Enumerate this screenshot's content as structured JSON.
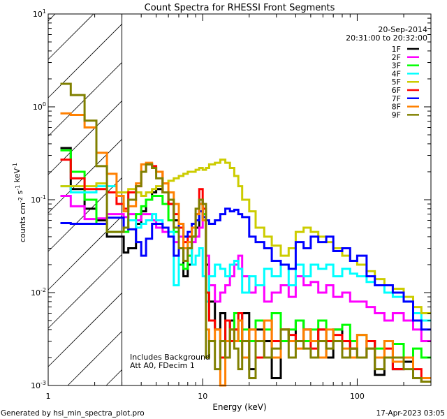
{
  "chart_data": {
    "type": "line",
    "title": "Count Spectra for RHESSI Front Segments",
    "xlabel": "Energy (keV)",
    "ylabel": "counts cm-2 s-1 keV-1",
    "xscale": "log",
    "yscale": "log",
    "xlim": [
      1,
      300
    ],
    "ylim": [
      0.001,
      10
    ],
    "x_ticks": [
      {
        "value": 1,
        "label": "1"
      },
      {
        "value": 10,
        "label": "10"
      },
      {
        "value": 100,
        "label": "100"
      }
    ],
    "y_ticks": [
      {
        "value": 0.001,
        "base": "10",
        "exp": "-3"
      },
      {
        "value": 0.01,
        "base": "10",
        "exp": "-2"
      },
      {
        "value": 0.1,
        "base": "10",
        "exp": "-1"
      },
      {
        "value": 1,
        "base": "10",
        "exp": "0"
      },
      {
        "value": 10,
        "base": "10",
        "exp": "1"
      }
    ],
    "hatched_region_keV": [
      1,
      3
    ],
    "legend_placement": "top-right",
    "date": "20-Sep-2014",
    "time_range": "20:31:00 to 20:32:00",
    "annotations": [
      "Includes Background",
      "Att A0, FDecim 1"
    ],
    "energy_edges": [
      1.2,
      1.4,
      1.72,
      2.05,
      2.4,
      2.77,
      3.08,
      3.3,
      3.7,
      4.0,
      4.3,
      4.7,
      5.0,
      5.5,
      6.0,
      6.5,
      7.0,
      7.5,
      8.0,
      8.5,
      9.0,
      9.5,
      10,
      10.5,
      11,
      12,
      13,
      14,
      15,
      16,
      17,
      18,
      20,
      22,
      25,
      28,
      32,
      36,
      40,
      45,
      50,
      56,
      63,
      70,
      80,
      90,
      100,
      115,
      130,
      150,
      170,
      200,
      230,
      260,
      300
    ],
    "series": [
      {
        "name": "1F",
        "color": "#000000",
        "values": [
          0.36,
          0.13,
          0.08,
          0.06,
          0.04,
          0.04,
          0.027,
          0.03,
          0.055,
          0.075,
          0.1,
          0.12,
          0.13,
          0.12,
          0.09,
          0.06,
          0.03,
          0.015,
          0.02,
          0.04,
          0.05,
          0.1,
          0.06,
          0.02,
          0.008,
          0.004,
          0.006,
          0.003,
          0.005,
          0.004,
          0.003,
          0.006,
          0.0015,
          0.004,
          0.003,
          0.0012,
          0.004,
          0.003,
          0.005,
          0.004,
          0.003,
          0.004,
          0.002,
          0.004,
          0.003,
          0.0025,
          0.002,
          0.003,
          0.0013,
          0.002,
          0.0015,
          0.0018,
          0.0012,
          0.0011
        ]
      },
      {
        "name": "2F",
        "color": "#ff00ff",
        "values": [
          0.11,
          0.085,
          0.062,
          0.063,
          0.07,
          0.07,
          0.065,
          0.07,
          0.06,
          0.07,
          0.07,
          0.06,
          0.05,
          0.045,
          0.04,
          0.035,
          0.04,
          0.03,
          0.025,
          0.035,
          0.04,
          0.05,
          0.06,
          0.025,
          0.012,
          0.008,
          0.01,
          0.012,
          0.015,
          0.02,
          0.025,
          0.015,
          0.01,
          0.012,
          0.008,
          0.01,
          0.012,
          0.009,
          0.015,
          0.012,
          0.013,
          0.01,
          0.012,
          0.009,
          0.01,
          0.008,
          0.008,
          0.007,
          0.006,
          0.005,
          0.006,
          0.005,
          0.004,
          0.003
        ]
      },
      {
        "name": "3F",
        "color": "#00ff00",
        "values": [
          0.34,
          0.2,
          0.1,
          0.055,
          0.045,
          0.045,
          0.045,
          0.06,
          0.07,
          0.085,
          0.1,
          0.11,
          0.11,
          0.09,
          0.06,
          0.045,
          0.02,
          0.018,
          0.025,
          0.04,
          0.06,
          0.09,
          0.07,
          0.01,
          0.005,
          0.004,
          0.003,
          0.005,
          0.004,
          0.006,
          0.003,
          0.004,
          0.003,
          0.005,
          0.004,
          0.006,
          0.003,
          0.004,
          0.005,
          0.003,
          0.004,
          0.005,
          0.003,
          0.004,
          0.0045,
          0.003,
          0.0035,
          0.003,
          0.0025,
          0.003,
          0.0028,
          0.002,
          0.0025,
          0.002
        ]
      },
      {
        "name": "4F",
        "color": "#00ffff",
        "values": [
          0.14,
          0.12,
          0.12,
          0.14,
          0.14,
          0.12,
          0.12,
          0.06,
          0.05,
          0.055,
          0.06,
          0.07,
          0.06,
          0.05,
          0.045,
          0.012,
          0.05,
          0.04,
          0.03,
          0.02,
          0.025,
          0.03,
          0.015,
          0.008,
          0.015,
          0.02,
          0.018,
          0.015,
          0.02,
          0.022,
          0.018,
          0.01,
          0.015,
          0.012,
          0.018,
          0.015,
          0.02,
          0.012,
          0.02,
          0.015,
          0.02,
          0.018,
          0.02,
          0.015,
          0.018,
          0.016,
          0.015,
          0.013,
          0.012,
          0.01,
          0.009,
          0.008,
          0.006,
          0.005
        ]
      },
      {
        "name": "5F",
        "color": "#cccc00",
        "values": [
          0.14,
          0.14,
          0.14,
          0.15,
          0.12,
          0.12,
          0.12,
          0.13,
          0.12,
          0.11,
          0.12,
          0.13,
          0.14,
          0.15,
          0.16,
          0.17,
          0.18,
          0.19,
          0.2,
          0.2,
          0.21,
          0.22,
          0.21,
          0.22,
          0.24,
          0.25,
          0.27,
          0.25,
          0.22,
          0.18,
          0.14,
          0.1,
          0.075,
          0.05,
          0.04,
          0.032,
          0.025,
          0.03,
          0.045,
          0.05,
          0.045,
          0.04,
          0.035,
          0.03,
          0.025,
          0.022,
          0.02,
          0.017,
          0.014,
          0.012,
          0.011,
          0.009,
          0.007,
          0.006
        ]
      },
      {
        "name": "6F",
        "color": "#ff0000",
        "values": [
          0.27,
          0.17,
          0.13,
          0.13,
          0.12,
          0.09,
          0.08,
          0.12,
          0.14,
          0.2,
          0.24,
          0.23,
          0.2,
          0.12,
          0.09,
          0.07,
          0.05,
          0.035,
          0.04,
          0.05,
          0.07,
          0.13,
          0.08,
          0.01,
          0.005,
          0.004,
          0.002,
          0.005,
          0.003,
          0.004,
          0.006,
          0.003,
          0.004,
          0.002,
          0.005,
          0.003,
          0.004,
          0.0035,
          0.003,
          0.004,
          0.0025,
          0.004,
          0.003,
          0.0035,
          0.003,
          0.0025,
          0.002,
          0.003,
          0.002,
          0.0025,
          0.0015,
          0.002,
          0.0015,
          0.0012
        ]
      },
      {
        "name": "7F",
        "color": "#0000ff",
        "values": [
          0.056,
          0.055,
          0.055,
          0.055,
          0.064,
          0.064,
          0.05,
          0.048,
          0.035,
          0.025,
          0.038,
          0.055,
          0.055,
          0.05,
          0.04,
          0.025,
          0.055,
          0.04,
          0.045,
          0.055,
          0.06,
          0.075,
          0.065,
          0.06,
          0.055,
          0.06,
          0.07,
          0.08,
          0.075,
          0.078,
          0.07,
          0.065,
          0.04,
          0.035,
          0.03,
          0.022,
          0.02,
          0.018,
          0.035,
          0.03,
          0.04,
          0.035,
          0.04,
          0.028,
          0.03,
          0.022,
          0.025,
          0.015,
          0.012,
          0.012,
          0.01,
          0.008,
          0.005,
          0.004
        ]
      },
      {
        "name": "8F",
        "color": "#ff8000",
        "values": [
          0.85,
          0.82,
          0.6,
          0.32,
          0.19,
          0.11,
          0.075,
          0.085,
          0.15,
          0.24,
          0.25,
          0.22,
          0.2,
          0.15,
          0.12,
          0.09,
          0.055,
          0.03,
          0.035,
          0.05,
          0.07,
          0.09,
          0.06,
          0.004,
          0.003,
          0.004,
          0.0008,
          0.003,
          0.004,
          0.003,
          0.005,
          0.002,
          0.004,
          0.003,
          0.005,
          0.002,
          0.004,
          0.003,
          0.0025,
          0.004,
          0.003,
          0.002,
          0.004,
          0.003,
          0.0025,
          0.002,
          0.0035,
          0.0025,
          0.002,
          0.003,
          0.0018,
          0.002,
          0.0012,
          0.0012
        ]
      },
      {
        "name": "9F",
        "color": "#808000",
        "values": [
          1.77,
          1.34,
          0.71,
          0.23,
          0.045,
          0.045,
          0.05,
          0.1,
          0.14,
          0.2,
          0.24,
          0.22,
          0.17,
          0.12,
          0.1,
          0.05,
          0.03,
          0.022,
          0.03,
          0.04,
          0.08,
          0.1,
          0.09,
          0.002,
          0.003,
          0.0015,
          0.003,
          0.002,
          0.004,
          0.0025,
          0.0015,
          0.003,
          0.0012,
          0.003,
          0.002,
          0.0025,
          0.004,
          0.002,
          0.003,
          0.0025,
          0.002,
          0.003,
          0.0025,
          0.003,
          0.002,
          0.0025,
          0.002,
          0.0025,
          0.0015,
          0.002,
          0.002,
          0.0015,
          0.0012,
          0.0011
        ]
      }
    ]
  },
  "footer": {
    "generated_by": "Generated by hsi_min_spectra_plot.pro",
    "timestamp": "17-Apr-2023 03:05"
  }
}
